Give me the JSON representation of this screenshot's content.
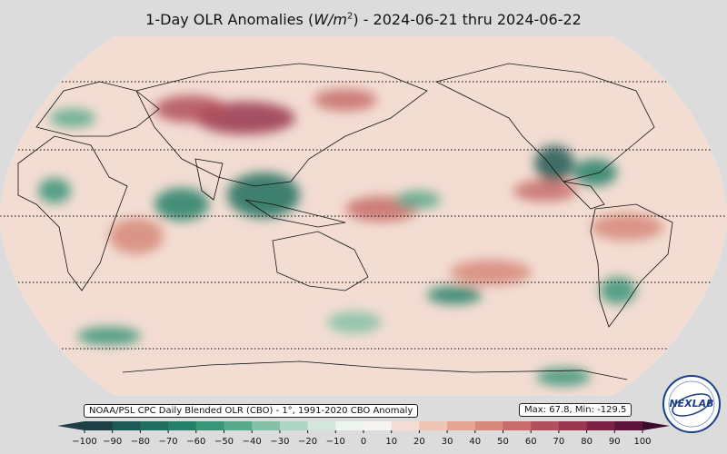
{
  "title_prefix": "1-Day OLR Anomalies (",
  "title_unit": "W/m",
  "title_unit_exp": "2",
  "title_suffix": ") - 2024-06-21 thru 2024-06-22",
  "source_note": "NOAA/PSL CPC Daily Blended OLR (CBO) - 1°, 1991-2020 CBO Anomaly",
  "stats": "Max: 67.8,  Min: -129.5",
  "logo_text": "NEXLAB",
  "colorbar": {
    "ticks": [
      "−100",
      "−90",
      "−80",
      "−70",
      "−60",
      "−50",
      "−40",
      "−30",
      "−20",
      "−10",
      "0",
      "10",
      "20",
      "30",
      "40",
      "50",
      "60",
      "70",
      "80",
      "90",
      "100"
    ],
    "range": [
      -100,
      100
    ],
    "step": 10,
    "colors": [
      "#1e3f45",
      "#1e5a55",
      "#1f6e5e",
      "#268069",
      "#3a9478",
      "#5aa98c",
      "#84c1a7",
      "#aed4c3",
      "#d2e6dc",
      "#eef4ef",
      "#f7f3f0",
      "#f4ddd4",
      "#eec4b4",
      "#e4a693",
      "#d6887a",
      "#c76c6a",
      "#b24f5c",
      "#98374f",
      "#7c2246",
      "#5d133a",
      "#3c0a2c"
    ]
  },
  "colors": {
    "background": "#dcdcdc",
    "ocean_base": "#f3ddd3",
    "coastline": "#111111",
    "parallel": "#000000"
  }
}
